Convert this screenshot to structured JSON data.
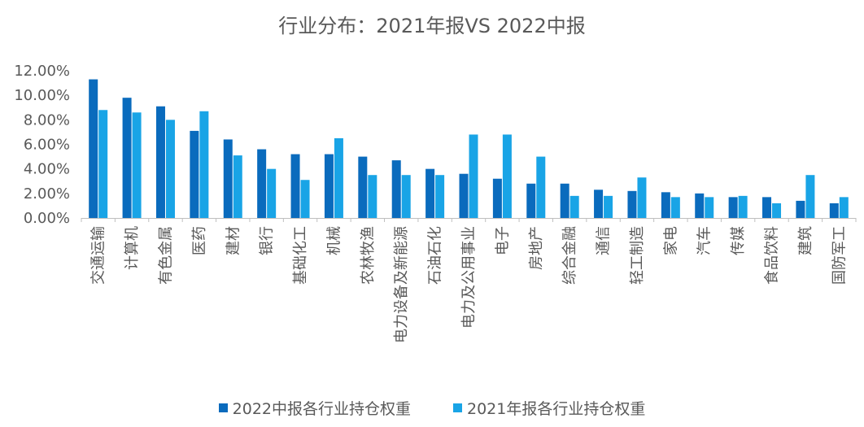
{
  "chart_data": {
    "type": "bar",
    "title": "行业分布：2021年报VS 2022中报",
    "xlabel": "",
    "ylabel": "",
    "ylim": [
      0,
      12
    ],
    "yticks": [
      "0.00%",
      "2.00%",
      "4.00%",
      "6.00%",
      "8.00%",
      "10.00%",
      "12.00%"
    ],
    "categories": [
      "交通运输",
      "计算机",
      "有色金属",
      "医药",
      "建材",
      "银行",
      "基础化工",
      "机械",
      "农林牧渔",
      "电力设备及新能源",
      "石油石化",
      "电力及公用事业",
      "电子",
      "房地产",
      "综合金融",
      "通信",
      "轻工制造",
      "家电",
      "汽车",
      "传媒",
      "食品饮料",
      "建筑",
      "国防军工"
    ],
    "series": [
      {
        "name": "2022中报各行业持仓权重",
        "color": "#0a6bbd",
        "values": [
          11.3,
          9.8,
          9.1,
          7.1,
          6.4,
          5.6,
          5.2,
          5.2,
          5.0,
          4.7,
          4.0,
          3.6,
          3.2,
          2.8,
          2.8,
          2.3,
          2.2,
          2.1,
          2.0,
          1.7,
          1.7,
          1.4,
          1.2
        ]
      },
      {
        "name": "2021年报各行业持仓权重",
        "color": "#19a4e6",
        "values": [
          8.8,
          8.6,
          8.0,
          8.7,
          5.1,
          4.0,
          3.1,
          6.5,
          3.5,
          3.5,
          3.5,
          6.8,
          6.8,
          5.0,
          1.8,
          1.8,
          3.3,
          1.7,
          1.7,
          1.8,
          1.2,
          3.5,
          1.7
        ]
      }
    ],
    "legend_position": "bottom-center"
  }
}
